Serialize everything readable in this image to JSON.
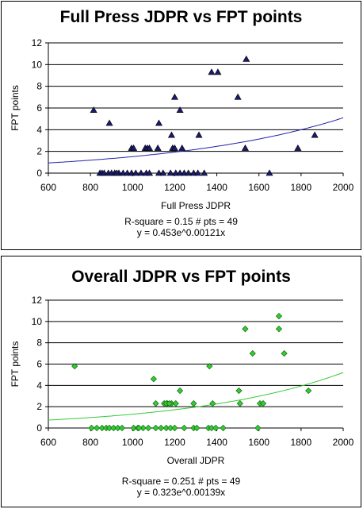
{
  "chart_data": [
    {
      "type": "scatter",
      "title": "Full Press JDPR vs FPT points",
      "xlabel": "Full Press JDPR",
      "ylabel": "FPT points",
      "xlim": [
        600,
        2000
      ],
      "ylim": [
        0,
        12
      ],
      "xticks": [
        600,
        800,
        1000,
        1200,
        1400,
        1600,
        1800,
        2000
      ],
      "yticks": [
        0,
        2,
        4,
        6,
        8,
        10,
        12
      ],
      "grid": "horizontal",
      "marker": "triangle",
      "marker_color": "#1a1a6e",
      "trend_color": "#2222aa",
      "trend": {
        "type": "exponential",
        "a": 0.453,
        "b": 0.00121
      },
      "stats_line1": "R-square = 0.15   # pts = 49",
      "stats_line2": "y = 0.453e^0.00121x",
      "points": [
        [
          815,
          5.8
        ],
        [
          890,
          4.6
        ],
        [
          1375,
          9.3
        ],
        [
          1405,
          9.3
        ],
        [
          1540,
          10.5
        ],
        [
          1200,
          7.0
        ],
        [
          1500,
          7.0
        ],
        [
          1225,
          5.8
        ],
        [
          1125,
          4.6
        ],
        [
          1185,
          3.5
        ],
        [
          1315,
          3.5
        ],
        [
          1865,
          3.5
        ],
        [
          995,
          2.3
        ],
        [
          1005,
          2.3
        ],
        [
          1060,
          2.3
        ],
        [
          1070,
          2.3
        ],
        [
          1080,
          2.3
        ],
        [
          1120,
          2.3
        ],
        [
          1190,
          2.3
        ],
        [
          1200,
          2.3
        ],
        [
          1235,
          2.3
        ],
        [
          1535,
          2.3
        ],
        [
          1785,
          2.3
        ],
        [
          845,
          0
        ],
        [
          855,
          0
        ],
        [
          865,
          0
        ],
        [
          885,
          0
        ],
        [
          900,
          0
        ],
        [
          915,
          0
        ],
        [
          935,
          0
        ],
        [
          955,
          0
        ],
        [
          975,
          0
        ],
        [
          995,
          0
        ],
        [
          1015,
          0
        ],
        [
          1040,
          0
        ],
        [
          1065,
          0
        ],
        [
          1080,
          0
        ],
        [
          1125,
          0
        ],
        [
          1145,
          0
        ],
        [
          1180,
          0
        ],
        [
          1205,
          0
        ],
        [
          1225,
          0
        ],
        [
          1245,
          0
        ],
        [
          1265,
          0
        ],
        [
          1290,
          0
        ],
        [
          1310,
          0
        ],
        [
          1340,
          0
        ],
        [
          1650,
          0
        ],
        [
          925,
          0
        ]
      ]
    },
    {
      "type": "scatter",
      "title": "Overall JDPR vs FPT points",
      "xlabel": "Overall JDPR",
      "ylabel": "FPT points",
      "xlim": [
        600,
        2000
      ],
      "ylim": [
        0,
        12
      ],
      "xticks": [
        600,
        800,
        1000,
        1200,
        1400,
        1600,
        1800,
        2000
      ],
      "yticks": [
        0,
        2,
        4,
        6,
        8,
        10,
        12
      ],
      "grid": "horizontal",
      "marker": "diamond",
      "marker_color": "#33cc33",
      "trend_color": "#33cc33",
      "trend": {
        "type": "exponential",
        "a": 0.323,
        "b": 0.00139
      },
      "stats_line1": "R-square = 0.251   # pts = 49",
      "stats_line2": "y = 0.323e^0.00139x",
      "points": [
        [
          725,
          5.8
        ],
        [
          1100,
          4.6
        ],
        [
          1365,
          5.8
        ],
        [
          1535,
          9.3
        ],
        [
          1695,
          9.3
        ],
        [
          1695,
          10.5
        ],
        [
          1570,
          7.0
        ],
        [
          1720,
          7.0
        ],
        [
          1225,
          3.5
        ],
        [
          1505,
          3.5
        ],
        [
          1835,
          3.5
        ],
        [
          1110,
          2.3
        ],
        [
          1150,
          2.3
        ],
        [
          1165,
          2.3
        ],
        [
          1185,
          2.3
        ],
        [
          1205,
          2.3
        ],
        [
          1290,
          2.3
        ],
        [
          1380,
          2.3
        ],
        [
          1510,
          2.3
        ],
        [
          1605,
          2.3
        ],
        [
          1620,
          2.3
        ],
        [
          1160,
          2.3
        ],
        [
          1175,
          2.3
        ],
        [
          805,
          0
        ],
        [
          830,
          0
        ],
        [
          855,
          0
        ],
        [
          875,
          0
        ],
        [
          890,
          0
        ],
        [
          910,
          0
        ],
        [
          930,
          0
        ],
        [
          950,
          0
        ],
        [
          1005,
          0
        ],
        [
          1025,
          0
        ],
        [
          1050,
          0
        ],
        [
          1075,
          0
        ],
        [
          1135,
          0
        ],
        [
          1160,
          0
        ],
        [
          1180,
          0
        ],
        [
          1200,
          0
        ],
        [
          1245,
          0
        ],
        [
          1290,
          0
        ],
        [
          1305,
          0
        ],
        [
          1360,
          0
        ],
        [
          1375,
          0
        ],
        [
          1395,
          0
        ],
        [
          1430,
          0
        ],
        [
          1595,
          0
        ],
        [
          1110,
          0
        ],
        [
          1030,
          0
        ]
      ]
    }
  ]
}
